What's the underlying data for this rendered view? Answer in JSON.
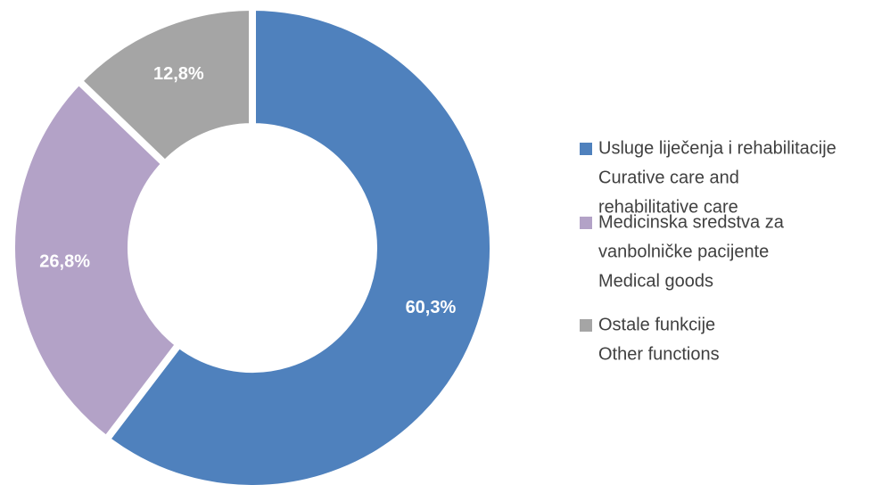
{
  "chart_data": {
    "type": "donut",
    "categories": [
      [
        "Usluge liječenja i rehabilitacije",
        "Curative care and",
        "rehabilitative care"
      ],
      [
        "Medicinska sredstva za",
        "vanbolničke pacijente",
        "Medical goods"
      ],
      [
        "Ostale funkcije",
        "Other functions"
      ]
    ],
    "values": [
      60.3,
      26.8,
      12.8
    ],
    "value_labels": [
      "60,3%",
      "26,8%",
      "12,8%"
    ],
    "colors": [
      "#4f81bd",
      "#b3a2c7",
      "#a5a5a5"
    ],
    "legend": "right"
  }
}
